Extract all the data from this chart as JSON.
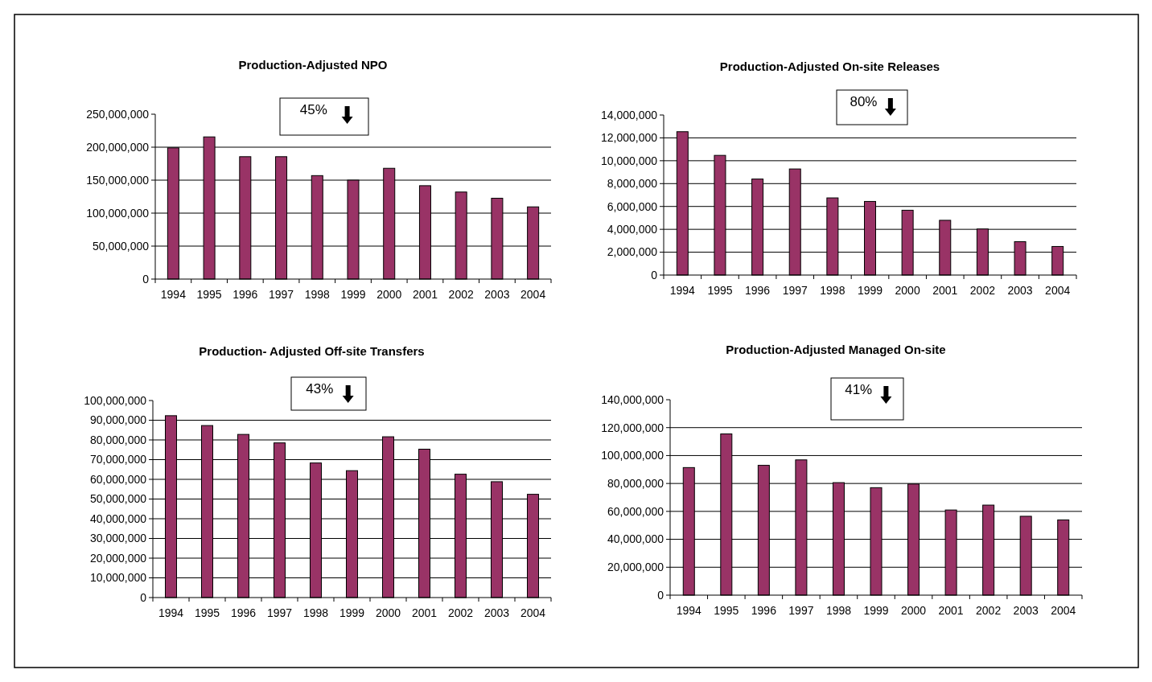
{
  "chart_data": [
    {
      "type": "bar",
      "title": "Production-Adjusted NPO",
      "categories": [
        "1994",
        "1995",
        "1996",
        "1997",
        "1998",
        "1999",
        "2000",
        "2001",
        "2002",
        "2003",
        "2004"
      ],
      "values": [
        199000000,
        215600000,
        185600000,
        185600000,
        156900000,
        150000000,
        168000000,
        141600000,
        132000000,
        122600000,
        109500000
      ],
      "color": "#993366",
      "ylim": [
        0,
        250000000
      ],
      "yticks": [
        {
          "value": 0,
          "label": "0"
        },
        {
          "value": 50000000,
          "label": "50,000,000"
        },
        {
          "value": 100000000,
          "label": "100,000,000"
        },
        {
          "value": 150000000,
          "label": "150,000,000"
        },
        {
          "value": 200000000,
          "label": "200,000,000"
        },
        {
          "value": 250000000,
          "label": "250,000,000"
        }
      ],
      "grid": "y",
      "annotations": [
        "45%"
      ]
    },
    {
      "type": "bar",
      "title": "Production-Adjusted On-site Releases",
      "categories": [
        "1994",
        "1995",
        "1996",
        "1997",
        "1998",
        "1999",
        "2000",
        "2001",
        "2002",
        "2003",
        "2004"
      ],
      "values": [
        12540000,
        10470000,
        8400000,
        9280000,
        6750000,
        6440000,
        5670000,
        4790000,
        4030000,
        2920000,
        2500000
      ],
      "color": "#993366",
      "ylim": [
        0,
        14000000
      ],
      "yticks": [
        {
          "value": 0,
          "label": "0"
        },
        {
          "value": 2000000,
          "label": "2,000,000"
        },
        {
          "value": 4000000,
          "label": "4,000,000"
        },
        {
          "value": 6000000,
          "label": "6,000,000"
        },
        {
          "value": 8000000,
          "label": "8,000,000"
        },
        {
          "value": 10000000,
          "label": "10,000,000"
        },
        {
          "value": 12000000,
          "label": "12,000,000"
        },
        {
          "value": 14000000,
          "label": "14,000,000"
        }
      ],
      "grid": "y",
      "annotations": [
        "80%"
      ]
    },
    {
      "type": "bar",
      "title": "Production- Adjusted Off-site Transfers",
      "categories": [
        "1994",
        "1995",
        "1996",
        "1997",
        "1998",
        "1999",
        "2000",
        "2001",
        "2002",
        "2003",
        "2004"
      ],
      "values": [
        92300000,
        87300000,
        82800000,
        78500000,
        68300000,
        64400000,
        81600000,
        75300000,
        62600000,
        58800000,
        52400000
      ],
      "color": "#993366",
      "ylim": [
        0,
        100000000
      ],
      "yticks": [
        {
          "value": 0,
          "label": "0"
        },
        {
          "value": 10000000,
          "label": "10,000,000"
        },
        {
          "value": 20000000,
          "label": "20,000,000"
        },
        {
          "value": 30000000,
          "label": "30,000,000"
        },
        {
          "value": 40000000,
          "label": "40,000,000"
        },
        {
          "value": 50000000,
          "label": "50,000,000"
        },
        {
          "value": 60000000,
          "label": "60,000,000"
        },
        {
          "value": 70000000,
          "label": "70,000,000"
        },
        {
          "value": 80000000,
          "label": "80,000,000"
        },
        {
          "value": 90000000,
          "label": "90,000,000"
        },
        {
          "value": 100000000,
          "label": "100,000,000"
        }
      ],
      "grid": "y",
      "annotations": [
        "43%"
      ]
    },
    {
      "type": "bar",
      "title": "Production-Adjusted Managed On-site",
      "categories": [
        "1994",
        "1995",
        "1996",
        "1997",
        "1998",
        "1999",
        "2000",
        "2001",
        "2002",
        "2003",
        "2004"
      ],
      "values": [
        91400000,
        115500000,
        93000000,
        96900000,
        80600000,
        77000000,
        79600000,
        61000000,
        64500000,
        56500000,
        53900000
      ],
      "color": "#993366",
      "ylim": [
        0,
        140000000
      ],
      "yticks": [
        {
          "value": 0,
          "label": "0"
        },
        {
          "value": 20000000,
          "label": "20,000,000"
        },
        {
          "value": 40000000,
          "label": "40,000,000"
        },
        {
          "value": 60000000,
          "label": "60,000,000"
        },
        {
          "value": 80000000,
          "label": "80,000,000"
        },
        {
          "value": 100000000,
          "label": "100,000,000"
        },
        {
          "value": 120000000,
          "label": "120,000,000"
        },
        {
          "value": 140000000,
          "label": "140,000,000"
        }
      ],
      "grid": "y",
      "annotations": [
        "41%"
      ]
    }
  ]
}
